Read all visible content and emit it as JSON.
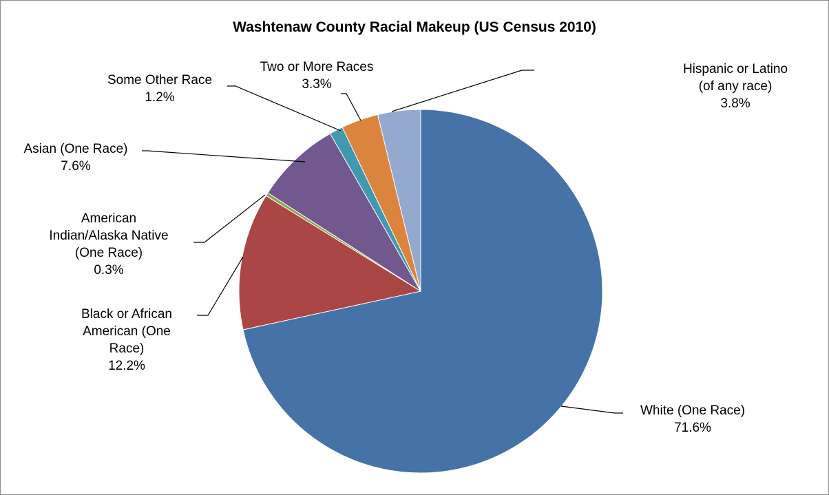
{
  "chart_data": {
    "type": "pie",
    "title": "Washtenaw County Racial Makeup (US Census 2010)",
    "slices": [
      {
        "label": "White (One Race)",
        "value": 71.6,
        "value_label": "71.6%",
        "color": "#4572A7"
      },
      {
        "label": "Black or African American (One Race)",
        "value": 12.2,
        "value_label": "12.2%",
        "color": "#AA4643"
      },
      {
        "label": "American Indian/Alaska Native (One Race)",
        "value": 0.3,
        "value_label": "0.3%",
        "color": "#89A54E"
      },
      {
        "label": "Asian (One Race)",
        "value": 7.6,
        "value_label": "7.6%",
        "color": "#71588F"
      },
      {
        "label": "Some Other Race",
        "value": 1.2,
        "value_label": "1.2%",
        "color": "#4198AF"
      },
      {
        "label": "Two or More Races",
        "value": 3.3,
        "value_label": "3.3%",
        "color": "#DB843D"
      },
      {
        "label": "Hispanic or Latino (of any race)",
        "value": 3.8,
        "value_label": "3.8%",
        "color": "#93A9CF"
      }
    ],
    "legend": "none"
  }
}
